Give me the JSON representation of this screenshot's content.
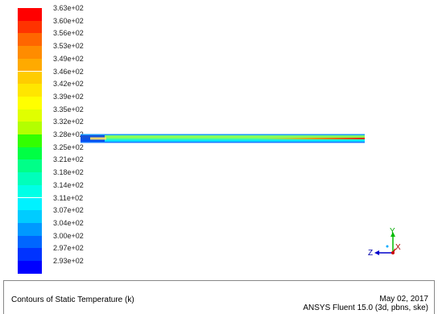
{
  "colorbar": {
    "labels": [
      "3.63e+02",
      "3.60e+02",
      "3.56e+02",
      "3.53e+02",
      "3.49e+02",
      "3.46e+02",
      "3.42e+02",
      "3.39e+02",
      "3.35e+02",
      "3.32e+02",
      "3.28e+02",
      "3.25e+02",
      "3.21e+02",
      "3.18e+02",
      "3.14e+02",
      "3.11e+02",
      "3.07e+02",
      "3.04e+02",
      "3.00e+02",
      "2.97e+02",
      "2.93e+02"
    ],
    "colors": [
      "#ff0000",
      "#ff3300",
      "#ff6600",
      "#ff8c00",
      "#ffaa00",
      "#ffcc00",
      "#ffe600",
      "#ffff00",
      "#e0ff00",
      "#b3ff00",
      "#33ff00",
      "#00ff44",
      "#00ff88",
      "#00ffbb",
      "#00ffe6",
      "#00f2ff",
      "#00ccff",
      "#0099ff",
      "#0066ff",
      "#0033ff",
      "#0000ff"
    ]
  },
  "axes": {
    "y": "Y",
    "z": "Z",
    "x": "X"
  },
  "title": {
    "text": "Contours of Static Temperature (k)",
    "date": "May 02, 2017",
    "solver": "ANSYS Fluent 15.0 (3d, pbns, ske)"
  }
}
